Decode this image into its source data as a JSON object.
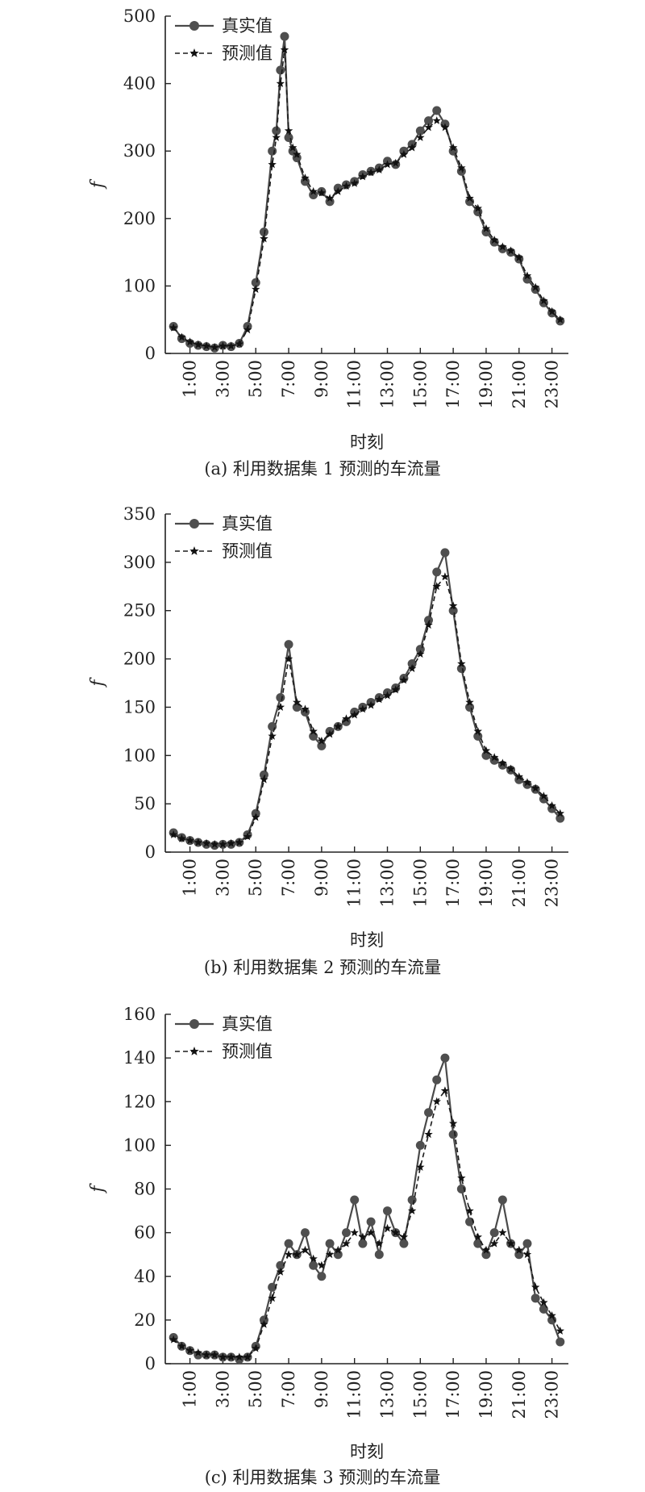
{
  "chart_data": [
    {
      "type": "line",
      "caption": "(a) 利用数据集 1 预测的车流量",
      "xlabel": "时刻",
      "ylabel": "f",
      "ylim": [
        0,
        500
      ],
      "yticks": [
        0,
        100,
        200,
        300,
        400,
        500
      ],
      "xticks": [
        1,
        3,
        5,
        7,
        9,
        11,
        13,
        15,
        17,
        19,
        21,
        23
      ],
      "xtick_labels": [
        "1:00",
        "3:00",
        "5:00",
        "7:00",
        "9:00",
        "11:00",
        "13:00",
        "15:00",
        "17:00",
        "19:00",
        "21:00",
        "23:00"
      ],
      "xlim": [
        -0.5,
        24
      ],
      "legend_position": "top-left",
      "grid": false,
      "series": [
        {
          "name": "真实值",
          "marker": "circle",
          "style": "solid",
          "x": [
            0,
            0.5,
            1,
            1.5,
            2,
            2.5,
            3,
            3.5,
            4,
            4.5,
            5,
            5.5,
            6,
            6.25,
            6.5,
            6.75,
            7,
            7.25,
            7.5,
            8,
            8.5,
            9,
            9.5,
            10,
            10.5,
            11,
            11.5,
            12,
            12.5,
            13,
            13.5,
            14,
            14.5,
            15,
            15.5,
            16,
            16.5,
            17,
            17.5,
            18,
            18.5,
            19,
            19.5,
            20,
            20.5,
            21,
            21.5,
            22,
            22.5,
            23,
            23.5
          ],
          "values": [
            40,
            22,
            15,
            12,
            10,
            8,
            12,
            10,
            15,
            40,
            105,
            180,
            300,
            330,
            420,
            470,
            320,
            300,
            290,
            255,
            235,
            240,
            225,
            245,
            250,
            255,
            265,
            270,
            275,
            285,
            280,
            300,
            310,
            330,
            345,
            360,
            340,
            300,
            270,
            225,
            210,
            180,
            165,
            155,
            150,
            140,
            110,
            95,
            75,
            60,
            48
          ]
        },
        {
          "name": "预测值",
          "marker": "star",
          "style": "dashed",
          "x": [
            0,
            0.5,
            1,
            1.5,
            2,
            2.5,
            3,
            3.5,
            4,
            4.5,
            5,
            5.5,
            6,
            6.25,
            6.5,
            6.75,
            7,
            7.25,
            7.5,
            8,
            8.5,
            9,
            9.5,
            10,
            10.5,
            11,
            11.5,
            12,
            12.5,
            13,
            13.5,
            14,
            14.5,
            15,
            15.5,
            16,
            16.5,
            17,
            17.5,
            18,
            18.5,
            19,
            19.5,
            20,
            20.5,
            21,
            21.5,
            22,
            22.5,
            23,
            23.5
          ],
          "values": [
            38,
            24,
            17,
            13,
            11,
            9,
            11,
            11,
            14,
            35,
            95,
            170,
            280,
            320,
            400,
            450,
            330,
            305,
            295,
            260,
            240,
            238,
            230,
            240,
            248,
            252,
            262,
            268,
            272,
            280,
            282,
            295,
            305,
            320,
            335,
            345,
            335,
            305,
            275,
            230,
            215,
            185,
            168,
            158,
            152,
            142,
            115,
            98,
            78,
            62,
            50
          ]
        }
      ]
    },
    {
      "type": "line",
      "caption": "(b) 利用数据集 2 预测的车流量",
      "xlabel": "时刻",
      "ylabel": "f",
      "ylim": [
        0,
        350
      ],
      "yticks": [
        0,
        50,
        100,
        150,
        200,
        250,
        300,
        350
      ],
      "xticks": [
        1,
        3,
        5,
        7,
        9,
        11,
        13,
        15,
        17,
        19,
        21,
        23
      ],
      "xtick_labels": [
        "1:00",
        "3:00",
        "5:00",
        "7:00",
        "9:00",
        "11:00",
        "13:00",
        "15:00",
        "17:00",
        "19:00",
        "21:00",
        "23:00"
      ],
      "xlim": [
        -0.5,
        24
      ],
      "legend_position": "top-left",
      "grid": false,
      "series": [
        {
          "name": "真实值",
          "marker": "circle",
          "style": "solid",
          "x": [
            0,
            0.5,
            1,
            1.5,
            2,
            2.5,
            3,
            3.5,
            4,
            4.5,
            5,
            5.5,
            6,
            6.5,
            7,
            7.5,
            8,
            8.5,
            9,
            9.5,
            10,
            10.5,
            11,
            11.5,
            12,
            12.5,
            13,
            13.5,
            14,
            14.5,
            15,
            15.5,
            16,
            16.5,
            17,
            17.5,
            18,
            18.5,
            19,
            19.5,
            20,
            20.5,
            21,
            21.5,
            22,
            22.5,
            23,
            23.5
          ],
          "values": [
            20,
            15,
            12,
            10,
            8,
            7,
            8,
            8,
            10,
            18,
            40,
            80,
            130,
            160,
            215,
            150,
            145,
            120,
            110,
            125,
            130,
            135,
            145,
            150,
            155,
            160,
            165,
            170,
            180,
            195,
            210,
            240,
            290,
            310,
            250,
            190,
            150,
            120,
            100,
            95,
            90,
            85,
            75,
            70,
            65,
            55,
            45,
            35
          ]
        },
        {
          "name": "预测值",
          "marker": "star",
          "style": "dashed",
          "x": [
            0,
            0.5,
            1,
            1.5,
            2,
            2.5,
            3,
            3.5,
            4,
            4.5,
            5,
            5.5,
            6,
            6.5,
            7,
            7.5,
            8,
            8.5,
            9,
            9.5,
            10,
            10.5,
            11,
            11.5,
            12,
            12.5,
            13,
            13.5,
            14,
            14.5,
            15,
            15.5,
            16,
            16.5,
            17,
            17.5,
            18,
            18.5,
            19,
            19.5,
            20,
            20.5,
            21,
            21.5,
            22,
            22.5,
            23,
            23.5
          ],
          "values": [
            18,
            14,
            12,
            10,
            9,
            8,
            8,
            9,
            10,
            16,
            36,
            75,
            120,
            150,
            200,
            155,
            148,
            125,
            115,
            122,
            130,
            138,
            142,
            148,
            152,
            158,
            162,
            168,
            178,
            190,
            205,
            235,
            275,
            285,
            255,
            195,
            155,
            125,
            105,
            98,
            92,
            86,
            78,
            72,
            66,
            58,
            48,
            40
          ]
        }
      ]
    },
    {
      "type": "line",
      "caption": "(c) 利用数据集 3 预测的车流量",
      "xlabel": "时刻",
      "ylabel": "f",
      "ylim": [
        0,
        160
      ],
      "yticks": [
        0,
        20,
        40,
        60,
        80,
        100,
        120,
        140,
        160
      ],
      "xticks": [
        1,
        3,
        5,
        7,
        9,
        11,
        13,
        15,
        17,
        19,
        21,
        23
      ],
      "xtick_labels": [
        "1:00",
        "3:00",
        "5:00",
        "7:00",
        "9:00",
        "11:00",
        "13:00",
        "15:00",
        "17:00",
        "19:00",
        "21:00",
        "23:00"
      ],
      "xlim": [
        -0.5,
        24
      ],
      "legend_position": "top-left",
      "grid": false,
      "series": [
        {
          "name": "真实值",
          "marker": "circle",
          "style": "solid",
          "x": [
            0,
            0.5,
            1,
            1.5,
            2,
            2.5,
            3,
            3.5,
            4,
            4.5,
            5,
            5.5,
            6,
            6.5,
            7,
            7.5,
            8,
            8.5,
            9,
            9.5,
            10,
            10.5,
            11,
            11.5,
            12,
            12.5,
            13,
            13.5,
            14,
            14.5,
            15,
            15.5,
            16,
            16.5,
            17,
            17.5,
            18,
            18.5,
            19,
            19.5,
            20,
            20.5,
            21,
            21.5,
            22,
            22.5,
            23,
            23.5
          ],
          "values": [
            12,
            8,
            6,
            4,
            4,
            4,
            3,
            3,
            2,
            3,
            8,
            20,
            35,
            45,
            55,
            50,
            60,
            45,
            40,
            55,
            50,
            60,
            75,
            55,
            65,
            50,
            70,
            60,
            55,
            75,
            100,
            115,
            130,
            140,
            105,
            80,
            65,
            55,
            50,
            60,
            75,
            55,
            50,
            55,
            30,
            25,
            20,
            10
          ]
        },
        {
          "name": "预测值",
          "marker": "star",
          "style": "dashed",
          "x": [
            0,
            0.5,
            1,
            1.5,
            2,
            2.5,
            3,
            3.5,
            4,
            4.5,
            5,
            5.5,
            6,
            6.5,
            7,
            7.5,
            8,
            8.5,
            9,
            9.5,
            10,
            10.5,
            11,
            11.5,
            12,
            12.5,
            13,
            13.5,
            14,
            14.5,
            15,
            15.5,
            16,
            16.5,
            17,
            17.5,
            18,
            18.5,
            19,
            19.5,
            20,
            20.5,
            21,
            21.5,
            22,
            22.5,
            23,
            23.5
          ],
          "values": [
            11,
            8,
            6,
            5,
            4,
            4,
            3,
            3,
            3,
            3,
            7,
            18,
            30,
            42,
            50,
            50,
            52,
            48,
            45,
            50,
            52,
            55,
            60,
            58,
            60,
            55,
            62,
            60,
            58,
            70,
            90,
            105,
            120,
            125,
            110,
            85,
            70,
            58,
            52,
            55,
            60,
            55,
            52,
            50,
            35,
            28,
            22,
            15
          ]
        }
      ]
    }
  ]
}
